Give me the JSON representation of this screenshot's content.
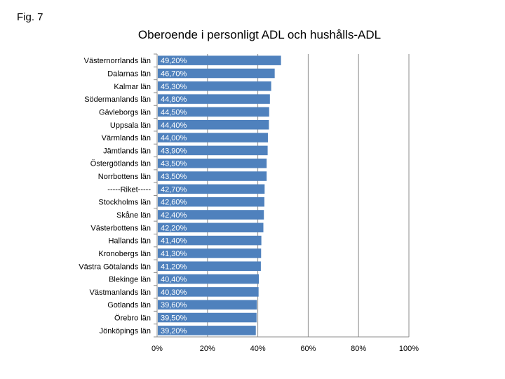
{
  "figure_label": "Fig. 7",
  "chart_data": {
    "type": "bar",
    "orientation": "horizontal",
    "title": "Oberoende i personligt ADL och hushålls-ADL",
    "xlabel": "",
    "ylabel": "",
    "xlim": [
      0,
      100
    ],
    "x_ticks": [
      "0%",
      "20%",
      "40%",
      "60%",
      "80%",
      "100%"
    ],
    "grid": true,
    "legend": "none",
    "bar_color": "#4f81bd",
    "categories": [
      "Västernorrlands län",
      "Dalarnas län",
      "Kalmar län",
      "Södermanlands län",
      "Gävleborgs län",
      "Uppsala län",
      "Värmlands län",
      "Jämtlands län",
      "Östergötlands län",
      "Norrbottens län",
      "-----Riket-----",
      "Stockholms län",
      "Skåne län",
      "Västerbottens län",
      "Hallands län",
      "Kronobergs län",
      "Västra Götalands län",
      "Blekinge län",
      "Västmanlands län",
      "Gotlands län",
      "Örebro län",
      "Jönköpings län"
    ],
    "values": [
      49.2,
      46.7,
      45.3,
      44.8,
      44.5,
      44.4,
      44.0,
      43.9,
      43.5,
      43.5,
      42.7,
      42.6,
      42.4,
      42.2,
      41.4,
      41.3,
      41.2,
      40.4,
      40.3,
      39.6,
      39.5,
      39.2
    ],
    "data_labels": [
      "49,20%",
      "46,70%",
      "45,30%",
      "44,80%",
      "44,50%",
      "44,40%",
      "44,00%",
      "43,90%",
      "43,50%",
      "43,50%",
      "42,70%",
      "42,60%",
      "42,40%",
      "42,20%",
      "41,40%",
      "41,30%",
      "41,20%",
      "40,40%",
      "40,30%",
      "39,60%",
      "39,50%",
      "39,20%"
    ]
  }
}
